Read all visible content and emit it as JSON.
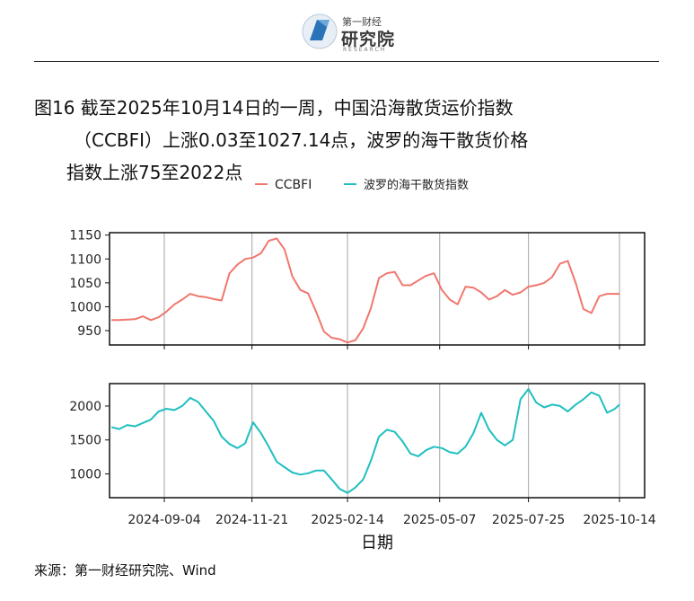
{
  "header": {
    "logo_small": "第一财经",
    "logo_big": "研究院",
    "logo_tiny": "RESEARCH"
  },
  "figure": {
    "title_line1": "图16  截至2025年10月14日的一周，中国沿海散货运价指数",
    "title_line2": "（CCBFI）上涨0.03至1027.14点，波罗的海干散货价格",
    "title_line3": "指数上涨75至2022点",
    "source": "来源：第一财经研究院、Wind"
  },
  "colors": {
    "ccbfi": "#f0776f",
    "bdi": "#1fbfc1",
    "grid": "#b3b3b3",
    "frame": "#111111"
  },
  "chart_data": {
    "type": "line",
    "xlabel": "日期",
    "legend_position": "top-center",
    "x_ticks": [
      "2024-09-04",
      "2024-11-21",
      "2025-02-14",
      "2025-05-07",
      "2025-07-25",
      "2025-10-14"
    ],
    "panels": [
      {
        "series_name": "CCBFI",
        "color_key": "ccbfi",
        "ylim": [
          920,
          1155
        ],
        "y_ticks": [
          950,
          1000,
          1050,
          1100,
          1150
        ],
        "grid_vertical": true,
        "points": [
          [
            "2024-07-19",
            972
          ],
          [
            "2024-07-26",
            972
          ],
          [
            "2024-08-02",
            973
          ],
          [
            "2024-08-09",
            974
          ],
          [
            "2024-08-16",
            980
          ],
          [
            "2024-08-23",
            972
          ],
          [
            "2024-08-30",
            978
          ],
          [
            "2024-09-06",
            990
          ],
          [
            "2024-09-13",
            1005
          ],
          [
            "2024-09-20",
            1015
          ],
          [
            "2024-09-27",
            1027
          ],
          [
            "2024-10-04",
            1022
          ],
          [
            "2024-10-11",
            1020
          ],
          [
            "2024-10-18",
            1016
          ],
          [
            "2024-10-25",
            1013
          ],
          [
            "2024-11-01",
            1070
          ],
          [
            "2024-11-08",
            1088
          ],
          [
            "2024-11-15",
            1100
          ],
          [
            "2024-11-22",
            1103
          ],
          [
            "2024-11-29",
            1112
          ],
          [
            "2024-12-06",
            1138
          ],
          [
            "2024-12-13",
            1143
          ],
          [
            "2024-12-20",
            1120
          ],
          [
            "2024-12-27",
            1063
          ],
          [
            "2025-01-03",
            1035
          ],
          [
            "2025-01-10",
            1028
          ],
          [
            "2025-01-17",
            990
          ],
          [
            "2025-01-24",
            948
          ],
          [
            "2025-01-31",
            935
          ],
          [
            "2025-02-07",
            932
          ],
          [
            "2025-02-14",
            925
          ],
          [
            "2025-02-21",
            930
          ],
          [
            "2025-02-28",
            955
          ],
          [
            "2025-03-07",
            998
          ],
          [
            "2025-03-14",
            1060
          ],
          [
            "2025-03-21",
            1070
          ],
          [
            "2025-03-28",
            1073
          ],
          [
            "2025-04-04",
            1045
          ],
          [
            "2025-04-11",
            1045
          ],
          [
            "2025-04-18",
            1055
          ],
          [
            "2025-04-25",
            1065
          ],
          [
            "2025-05-02",
            1070
          ],
          [
            "2025-05-09",
            1035
          ],
          [
            "2025-05-16",
            1015
          ],
          [
            "2025-05-23",
            1005
          ],
          [
            "2025-05-30",
            1042
          ],
          [
            "2025-06-06",
            1040
          ],
          [
            "2025-06-13",
            1030
          ],
          [
            "2025-06-20",
            1015
          ],
          [
            "2025-06-27",
            1022
          ],
          [
            "2025-07-04",
            1035
          ],
          [
            "2025-07-11",
            1025
          ],
          [
            "2025-07-18",
            1030
          ],
          [
            "2025-07-25",
            1042
          ],
          [
            "2025-08-01",
            1045
          ],
          [
            "2025-08-08",
            1050
          ],
          [
            "2025-08-15",
            1062
          ],
          [
            "2025-08-22",
            1090
          ],
          [
            "2025-08-29",
            1096
          ],
          [
            "2025-09-05",
            1050
          ],
          [
            "2025-09-12",
            995
          ],
          [
            "2025-09-19",
            987
          ],
          [
            "2025-09-26",
            1022
          ],
          [
            "2025-10-03",
            1027
          ],
          [
            "2025-10-14",
            1027
          ]
        ]
      },
      {
        "series_name": "波罗的海干散货指数",
        "color_key": "bdi",
        "ylim": [
          650,
          2330
        ],
        "y_ticks": [
          1000,
          1500,
          2000
        ],
        "grid_vertical": true,
        "points": [
          [
            "2024-07-19",
            1690
          ],
          [
            "2024-07-26",
            1660
          ],
          [
            "2024-08-02",
            1720
          ],
          [
            "2024-08-09",
            1700
          ],
          [
            "2024-08-16",
            1750
          ],
          [
            "2024-08-23",
            1800
          ],
          [
            "2024-08-30",
            1920
          ],
          [
            "2024-09-06",
            1960
          ],
          [
            "2024-09-13",
            1940
          ],
          [
            "2024-09-20",
            2000
          ],
          [
            "2024-09-27",
            2120
          ],
          [
            "2024-10-04",
            2060
          ],
          [
            "2024-10-11",
            1920
          ],
          [
            "2024-10-18",
            1780
          ],
          [
            "2024-10-25",
            1550
          ],
          [
            "2024-11-01",
            1440
          ],
          [
            "2024-11-08",
            1380
          ],
          [
            "2024-11-15",
            1450
          ],
          [
            "2024-11-22",
            1760
          ],
          [
            "2024-11-29",
            1600
          ],
          [
            "2024-12-06",
            1400
          ],
          [
            "2024-12-13",
            1180
          ],
          [
            "2024-12-20",
            1100
          ],
          [
            "2024-12-27",
            1020
          ],
          [
            "2025-01-03",
            990
          ],
          [
            "2025-01-10",
            1010
          ],
          [
            "2025-01-17",
            1050
          ],
          [
            "2025-01-24",
            1050
          ],
          [
            "2025-01-31",
            920
          ],
          [
            "2025-02-07",
            780
          ],
          [
            "2025-02-14",
            720
          ],
          [
            "2025-02-21",
            800
          ],
          [
            "2025-02-28",
            920
          ],
          [
            "2025-03-07",
            1200
          ],
          [
            "2025-03-14",
            1550
          ],
          [
            "2025-03-21",
            1650
          ],
          [
            "2025-03-28",
            1620
          ],
          [
            "2025-04-04",
            1480
          ],
          [
            "2025-04-11",
            1300
          ],
          [
            "2025-04-18",
            1260
          ],
          [
            "2025-04-25",
            1350
          ],
          [
            "2025-05-02",
            1400
          ],
          [
            "2025-05-09",
            1380
          ],
          [
            "2025-05-16",
            1320
          ],
          [
            "2025-05-23",
            1300
          ],
          [
            "2025-05-30",
            1400
          ],
          [
            "2025-06-06",
            1600
          ],
          [
            "2025-06-13",
            1900
          ],
          [
            "2025-06-20",
            1650
          ],
          [
            "2025-06-27",
            1500
          ],
          [
            "2025-07-04",
            1420
          ],
          [
            "2025-07-11",
            1500
          ],
          [
            "2025-07-18",
            2100
          ],
          [
            "2025-07-25",
            2250
          ],
          [
            "2025-08-01",
            2050
          ],
          [
            "2025-08-08",
            1980
          ],
          [
            "2025-08-15",
            2020
          ],
          [
            "2025-08-22",
            2000
          ],
          [
            "2025-08-29",
            1920
          ],
          [
            "2025-09-05",
            2020
          ],
          [
            "2025-09-12",
            2100
          ],
          [
            "2025-09-19",
            2200
          ],
          [
            "2025-09-26",
            2150
          ],
          [
            "2025-10-03",
            1900
          ],
          [
            "2025-10-10",
            1960
          ],
          [
            "2025-10-14",
            2022
          ]
        ]
      }
    ]
  }
}
